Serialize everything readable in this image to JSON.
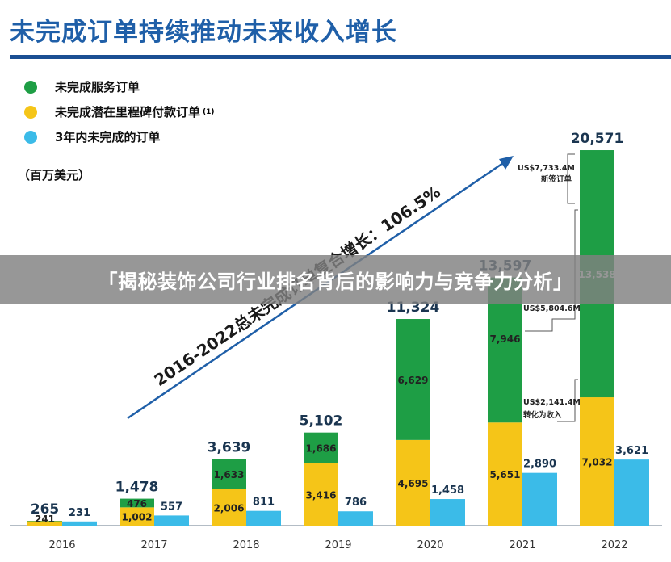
{
  "header": {
    "title": "未完成订单持续推动未来收入增长"
  },
  "legend": [
    {
      "label": "未完成服务订单",
      "color": "#1e9e45",
      "note": ""
    },
    {
      "label": "未完成潜在里程碑付款订单",
      "color": "#f5c518",
      "note": "(1)"
    },
    {
      "label": "3年内未完成的订单",
      "color": "#3bbbe8",
      "note": ""
    }
  ],
  "unit_label": "（百万美元）",
  "banner": {
    "text": "「揭秘装饰公司行业排名背后的影响力与竞争力分析」"
  },
  "chart_data": {
    "type": "bar",
    "categories": [
      "2016",
      "2017",
      "2018",
      "2019",
      "2020",
      "2021",
      "2022"
    ],
    "stack_series": [
      {
        "name": "未完成潜在里程碑付款订单",
        "color": "#f5c518",
        "values": [
          241,
          1002,
          2006,
          3416,
          4695,
          5651,
          7032
        ]
      },
      {
        "name": "未完成服务订单",
        "color": "#1e9e45",
        "values": [
          24,
          476,
          1633,
          1686,
          6629,
          7946,
          13538
        ]
      }
    ],
    "stack_labels": {
      "yellow": [
        "241",
        "1,002",
        "2,006",
        "3,416",
        "4,695",
        "5,651",
        "7,032"
      ],
      "green": [
        "",
        "476",
        "1,633",
        "1,686",
        "6,629",
        "7,946",
        "13,538"
      ]
    },
    "totals": [
      265,
      1478,
      3639,
      5102,
      11324,
      13597,
      20571
    ],
    "total_labels": [
      "265",
      "1,478",
      "3,639",
      "5,102",
      "11,324",
      "13,597",
      "20,571"
    ],
    "side_series": {
      "name": "3年内未完成的订单",
      "color": "#3bbbe8",
      "values": [
        231,
        557,
        811,
        786,
        1458,
        2890,
        3621
      ]
    },
    "side_labels": [
      "231",
      "557",
      "811",
      "786",
      "1,458",
      "2,890",
      "3,621"
    ],
    "ylim": [
      0,
      21000
    ],
    "trend_label": "2016-2022总未完成订单复合增长：106.5%",
    "annotations": [
      {
        "text": "US$7,733.4M",
        "subtext": "新签订单"
      },
      {
        "text": "US$5,804.6M",
        "subtext": ""
      },
      {
        "text": "US$2,141.4M",
        "subtext": "转化为收入"
      }
    ]
  }
}
